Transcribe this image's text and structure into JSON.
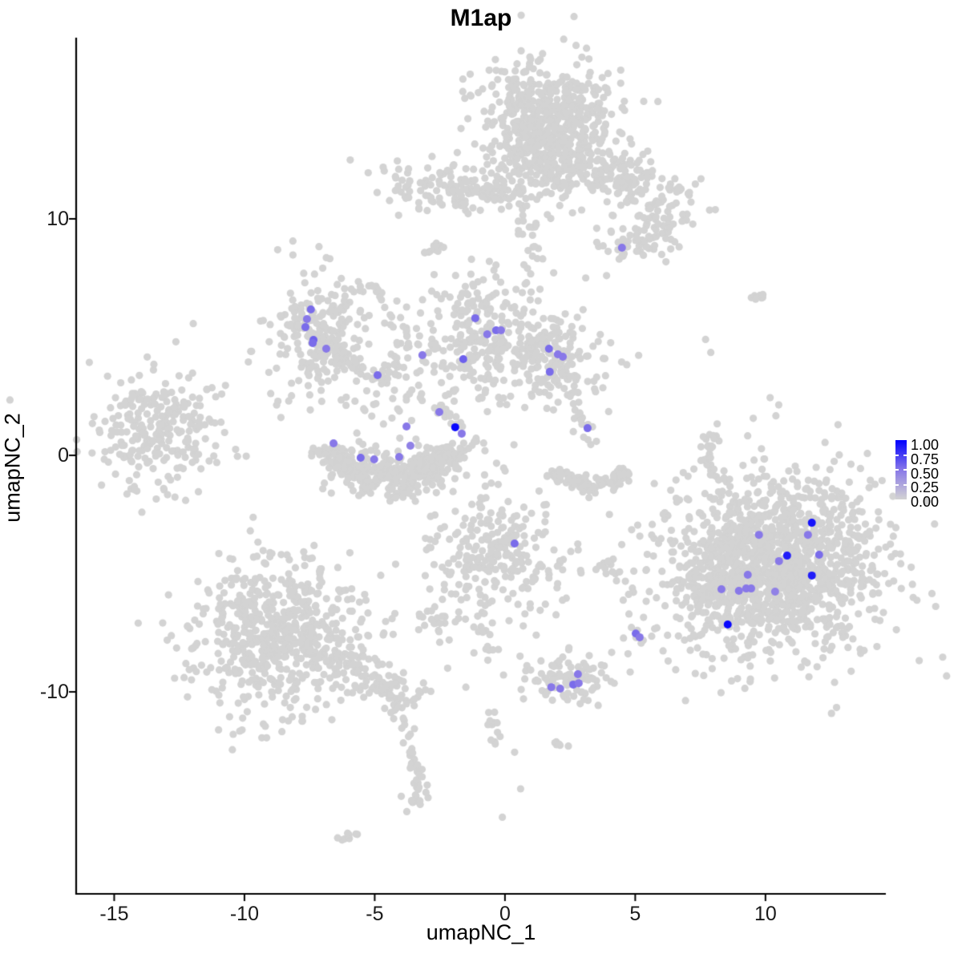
{
  "chart_data": {
    "type": "scatter",
    "title": "M1ap",
    "xlabel": "umapNC_1",
    "ylabel": "umapNC_2",
    "xlim": [
      -16.46,
      14.62
    ],
    "ylim": [
      -18.54,
      17.66
    ],
    "x_ticks": [
      -15,
      -10,
      -5,
      0,
      5,
      10
    ],
    "y_ticks": [
      -10,
      0,
      10
    ],
    "grid": false,
    "legend_position": "right",
    "point_radius_px": 4.6,
    "expr_point_radius_px": 5.0,
    "colors": {
      "low": "#D3D3D3",
      "mid": "#8878E8",
      "high": "#0000FF",
      "axis": "#000000",
      "tick_label": "#1a1a1a",
      "background": "#ffffff"
    },
    "legend": {
      "tick_labels": [
        "1.00",
        "0.75",
        "0.50",
        "0.25",
        "0.00"
      ],
      "tick_values": [
        1.0,
        0.75,
        0.5,
        0.25,
        0.0
      ],
      "bar_tick_values": [
        0.75,
        0.5,
        0.25
      ]
    },
    "background_clusters": [
      {
        "name": "top-main",
        "shape": "gauss",
        "cx": 1.8,
        "cy": 14.3,
        "sx": 1.35,
        "sy": 1.25,
        "rot": 0,
        "n": 520
      },
      {
        "name": "top-main-neck",
        "shape": "gauss",
        "cx": 1.25,
        "cy": 12.3,
        "sx": 0.75,
        "sy": 0.8,
        "rot": 0,
        "n": 130
      },
      {
        "name": "top-left-arm",
        "shape": "gauss",
        "cx": -2.2,
        "cy": 11.35,
        "sx": 1.3,
        "sy": 0.5,
        "rot": 0,
        "n": 125
      },
      {
        "name": "top-right-band",
        "shape": "gauss",
        "cx": 4.3,
        "cy": 11.7,
        "sx": 1.7,
        "sy": 0.7,
        "rot": -27,
        "n": 200
      },
      {
        "name": "right-ext-blob",
        "shape": "gauss",
        "cx": 5.9,
        "cy": 9.55,
        "sx": 0.5,
        "sy": 0.5,
        "rot": 0,
        "n": 38
      },
      {
        "name": "expr-blob-topright",
        "shape": "gauss",
        "cx": 4.6,
        "cy": 8.9,
        "sx": 0.55,
        "sy": 0.45,
        "rot": 0,
        "n": 34
      },
      {
        "name": "midleft",
        "shape": "gauss",
        "cx": -7.2,
        "cy": 5.15,
        "sx": 0.95,
        "sy": 1.25,
        "rot": 0,
        "n": 225
      },
      {
        "name": "center",
        "shape": "gauss",
        "cx": -0.8,
        "cy": 4.9,
        "sx": 1.4,
        "sy": 1.35,
        "rot": 0,
        "n": 300
      },
      {
        "name": "right-center",
        "shape": "gauss",
        "cx": 1.9,
        "cy": 4.0,
        "sx": 1.0,
        "sy": 1.05,
        "rot": 0,
        "n": 160
      },
      {
        "name": "far-left",
        "shape": "gauss",
        "cx": -13.4,
        "cy": 1.1,
        "sx": 1.35,
        "sy": 1.2,
        "rot": 0,
        "n": 255
      },
      {
        "name": "big-right",
        "shape": "gauss",
        "cx": 10.4,
        "cy": -4.6,
        "sx": 2.15,
        "sy": 2.05,
        "rot": 0,
        "n": 1320
      },
      {
        "name": "big-right-west",
        "shape": "gauss",
        "cx": 8.1,
        "cy": -5.3,
        "sx": 0.6,
        "sy": 0.9,
        "rot": 0,
        "n": 120
      },
      {
        "name": "center-bottom",
        "shape": "gauss",
        "cx": -0.5,
        "cy": -4.0,
        "sx": 1.25,
        "sy": 1.3,
        "rot": 0,
        "n": 245
      },
      {
        "name": "left-small-blob",
        "shape": "gauss",
        "cx": -2.3,
        "cy": -6.8,
        "sx": 0.45,
        "sy": 0.6,
        "rot": 0,
        "n": 26
      },
      {
        "name": "bottom-left",
        "shape": "gauss",
        "cx": -8.7,
        "cy": -7.6,
        "sx": 1.6,
        "sy": 1.55,
        "rot": 0,
        "n": 640
      },
      {
        "name": "bottom-center",
        "shape": "gauss",
        "cx": 2.35,
        "cy": -9.5,
        "sx": 0.85,
        "sy": 0.5,
        "rot": 0,
        "n": 95
      },
      {
        "name": "small-worm",
        "shape": "gauss",
        "cx": 3.8,
        "cy": -4.75,
        "sx": 0.5,
        "sy": 0.18,
        "rot": 0,
        "n": 13
      },
      {
        "name": "dots-right-mid",
        "shape": "gauss",
        "cx": 5.05,
        "cy": -7.4,
        "sx": 0.28,
        "sy": 0.45,
        "rot": 0,
        "n": 8
      },
      {
        "name": "between-center",
        "shape": "gauss",
        "cx": -3.6,
        "cy": 2.2,
        "sx": 1.0,
        "sy": 0.65,
        "rot": 0,
        "n": 28
      },
      {
        "name": "u-fill",
        "shape": "gauss",
        "cx": -4.5,
        "cy": -0.45,
        "sx": 1.3,
        "sy": 0.5,
        "rot": 0,
        "n": 110
      },
      {
        "name": "u-arc",
        "shape": "arc",
        "cx": -4.4,
        "cy": 0.5,
        "rx": 2.3,
        "ry": 1.65,
        "a0": 185,
        "a1": 355,
        "jit": 0.4,
        "n": 300
      },
      {
        "name": "crescent-right",
        "shape": "arc",
        "cx": 3.3,
        "cy": -0.45,
        "rx": 1.35,
        "ry": 0.8,
        "a0": 195,
        "a1": 345,
        "jit": 0.22,
        "n": 115
      }
    ],
    "strands": [
      {
        "name": "arm-tail",
        "pts": [
          -1.2,
          11.2,
          0.4,
          11.0
        ],
        "jit": 0.25,
        "n": 20
      },
      {
        "name": "neck-trail",
        "pts": [
          0.6,
          10.3,
          1.3,
          9.0,
          1.2,
          8.0
        ],
        "jit": 0.35,
        "n": 26
      },
      {
        "name": "left-dash-top",
        "pts": [
          -3.1,
          8.4,
          -2.5,
          9.0
        ],
        "jit": 0.12,
        "n": 13
      },
      {
        "name": "strand-mid",
        "pts": [
          -5.3,
          7.3,
          -4.7,
          6.7
        ],
        "jit": 0.12,
        "n": 11
      },
      {
        "name": "diag-a",
        "pts": [
          -4.6,
          5.9,
          -3.3,
          4.4
        ],
        "jit": 0.2,
        "n": 15
      },
      {
        "name": "strand-b",
        "pts": [
          -2.6,
          2.1,
          -0.9,
          0.4
        ],
        "jit": 0.15,
        "n": 24
      },
      {
        "name": "midleft-loop",
        "pts": [
          -6.4,
          4.4,
          -5.5,
          3.5,
          -4.6,
          3.2,
          -4.1,
          3.8,
          -4.4,
          4.5
        ],
        "jit": 0.18,
        "n": 55
      },
      {
        "name": "crescent-trail",
        "pts": [
          3.0,
          2.3,
          3.25,
          0.7
        ],
        "jit": 0.22,
        "n": 13
      },
      {
        "name": "right-thin",
        "pts": [
          7.9,
          1.0,
          7.78,
          -0.2,
          8.0,
          -0.9
        ],
        "jit": 0.12,
        "n": 24
      },
      {
        "name": "right-dash-top",
        "pts": [
          9.4,
          6.6,
          10.0,
          6.7
        ],
        "jit": 0.1,
        "n": 7
      },
      {
        "name": "cb-tail",
        "pts": [
          -1.0,
          -5.9,
          -0.9,
          -7.3,
          -0.6,
          -8.8
        ],
        "jit": 0.18,
        "n": 20
      },
      {
        "name": "bl-tail",
        "pts": [
          -6.6,
          -8.3,
          -5.0,
          -9.4,
          -3.6,
          -10.6
        ],
        "jit": 0.45,
        "n": 105
      },
      {
        "name": "bl-strand-down",
        "pts": [
          -3.9,
          -11.0,
          -3.5,
          -12.6,
          -3.3,
          -13.8,
          -3.45,
          -15.2
        ],
        "jit": 0.18,
        "n": 42
      },
      {
        "name": "bottom-dash",
        "pts": [
          -6.25,
          -16.25,
          -5.75,
          -15.9
        ],
        "jit": 0.1,
        "n": 8
      },
      {
        "name": "below-strand",
        "pts": [
          -0.5,
          -10.6,
          -0.3,
          -12.2
        ],
        "jit": 0.2,
        "n": 13
      },
      {
        "name": "below-worm",
        "pts": [
          1.9,
          -12.1,
          2.5,
          -12.3
        ],
        "jit": 0.12,
        "n": 7
      }
    ],
    "singles": [
      [
        -11.7,
        2.1
      ],
      [
        -11.5,
        0.7
      ],
      [
        -12.0,
        -0.3
      ],
      [
        -10.9,
        1.4
      ],
      [
        -9.85,
        3.95
      ],
      [
        -8.3,
        2.3
      ],
      [
        -8.6,
        1.6
      ],
      [
        -13.1,
        -1.4
      ],
      [
        7.7,
        4.9
      ],
      [
        7.9,
        4.35
      ],
      [
        9.9,
        6.8
      ],
      [
        8.06,
        -1.83
      ],
      [
        0.83,
        7.3
      ],
      [
        -0.6,
        8.2
      ],
      [
        3.9,
        7.6
      ],
      [
        3.1,
        7.5
      ],
      [
        6.8,
        9.9
      ],
      [
        0.5,
        -6.3
      ],
      [
        1.2,
        -7.6
      ],
      [
        -2.2,
        -9.0
      ],
      [
        -1.5,
        -9.8
      ],
      [
        -0.1,
        -15.3
      ],
      [
        1.5,
        -2.1
      ],
      [
        0.37,
        -12.55
      ],
      [
        0.6,
        -14.1
      ],
      [
        2.0,
        -5.6
      ]
    ],
    "expressing_cells": [
      [
        -7.45,
        6.17,
        0.55
      ],
      [
        -7.6,
        5.76,
        0.5
      ],
      [
        -7.66,
        5.42,
        0.55
      ],
      [
        -7.35,
        4.88,
        0.6
      ],
      [
        -7.38,
        4.75,
        0.55
      ],
      [
        -6.86,
        4.51,
        0.5
      ],
      [
        -4.89,
        3.39,
        0.55
      ],
      [
        -1.14,
        5.8,
        0.55
      ],
      [
        -0.68,
        5.12,
        0.5
      ],
      [
        -0.34,
        5.29,
        0.55
      ],
      [
        -0.15,
        5.29,
        0.5
      ],
      [
        -1.6,
        4.07,
        0.6
      ],
      [
        1.69,
        4.51,
        0.55
      ],
      [
        2.03,
        4.27,
        0.5
      ],
      [
        2.22,
        4.17,
        0.5
      ],
      [
        1.72,
        3.53,
        0.55
      ],
      [
        -3.17,
        4.24,
        0.5
      ],
      [
        -6.58,
        0.51,
        0.5
      ],
      [
        -5.54,
        -0.1,
        0.55
      ],
      [
        -5.02,
        -0.17,
        0.5
      ],
      [
        -4.06,
        -0.07,
        0.5
      ],
      [
        -3.63,
        0.41,
        0.45
      ],
      [
        -3.78,
        1.22,
        0.5
      ],
      [
        -2.52,
        1.83,
        0.5
      ],
      [
        -1.91,
        1.19,
        0.97
      ],
      [
        -1.66,
        0.92,
        0.5
      ],
      [
        3.17,
        1.15,
        0.55
      ],
      [
        4.49,
        8.78,
        0.5
      ],
      [
        0.37,
        -3.73,
        0.55
      ],
      [
        11.78,
        -2.85,
        0.92
      ],
      [
        9.75,
        -3.36,
        0.5
      ],
      [
        11.63,
        -3.36,
        0.5
      ],
      [
        10.83,
        -4.24,
        0.88
      ],
      [
        10.52,
        -4.47,
        0.5
      ],
      [
        12.06,
        -4.2,
        0.55
      ],
      [
        11.78,
        -5.08,
        0.88
      ],
      [
        9.32,
        -5.05,
        0.5
      ],
      [
        8.31,
        -5.66,
        0.5
      ],
      [
        8.98,
        -5.73,
        0.5
      ],
      [
        9.26,
        -5.63,
        0.5
      ],
      [
        9.45,
        -5.63,
        0.5
      ],
      [
        10.37,
        -5.76,
        0.45
      ],
      [
        8.55,
        -7.15,
        0.97
      ],
      [
        5.02,
        -7.53,
        0.55
      ],
      [
        5.17,
        -7.69,
        0.5
      ],
      [
        2.8,
        -9.25,
        0.5
      ],
      [
        2.62,
        -9.69,
        0.55
      ],
      [
        2.83,
        -9.63,
        0.5
      ],
      [
        1.78,
        -9.8,
        0.5
      ],
      [
        2.12,
        -9.86,
        0.5
      ]
    ]
  }
}
